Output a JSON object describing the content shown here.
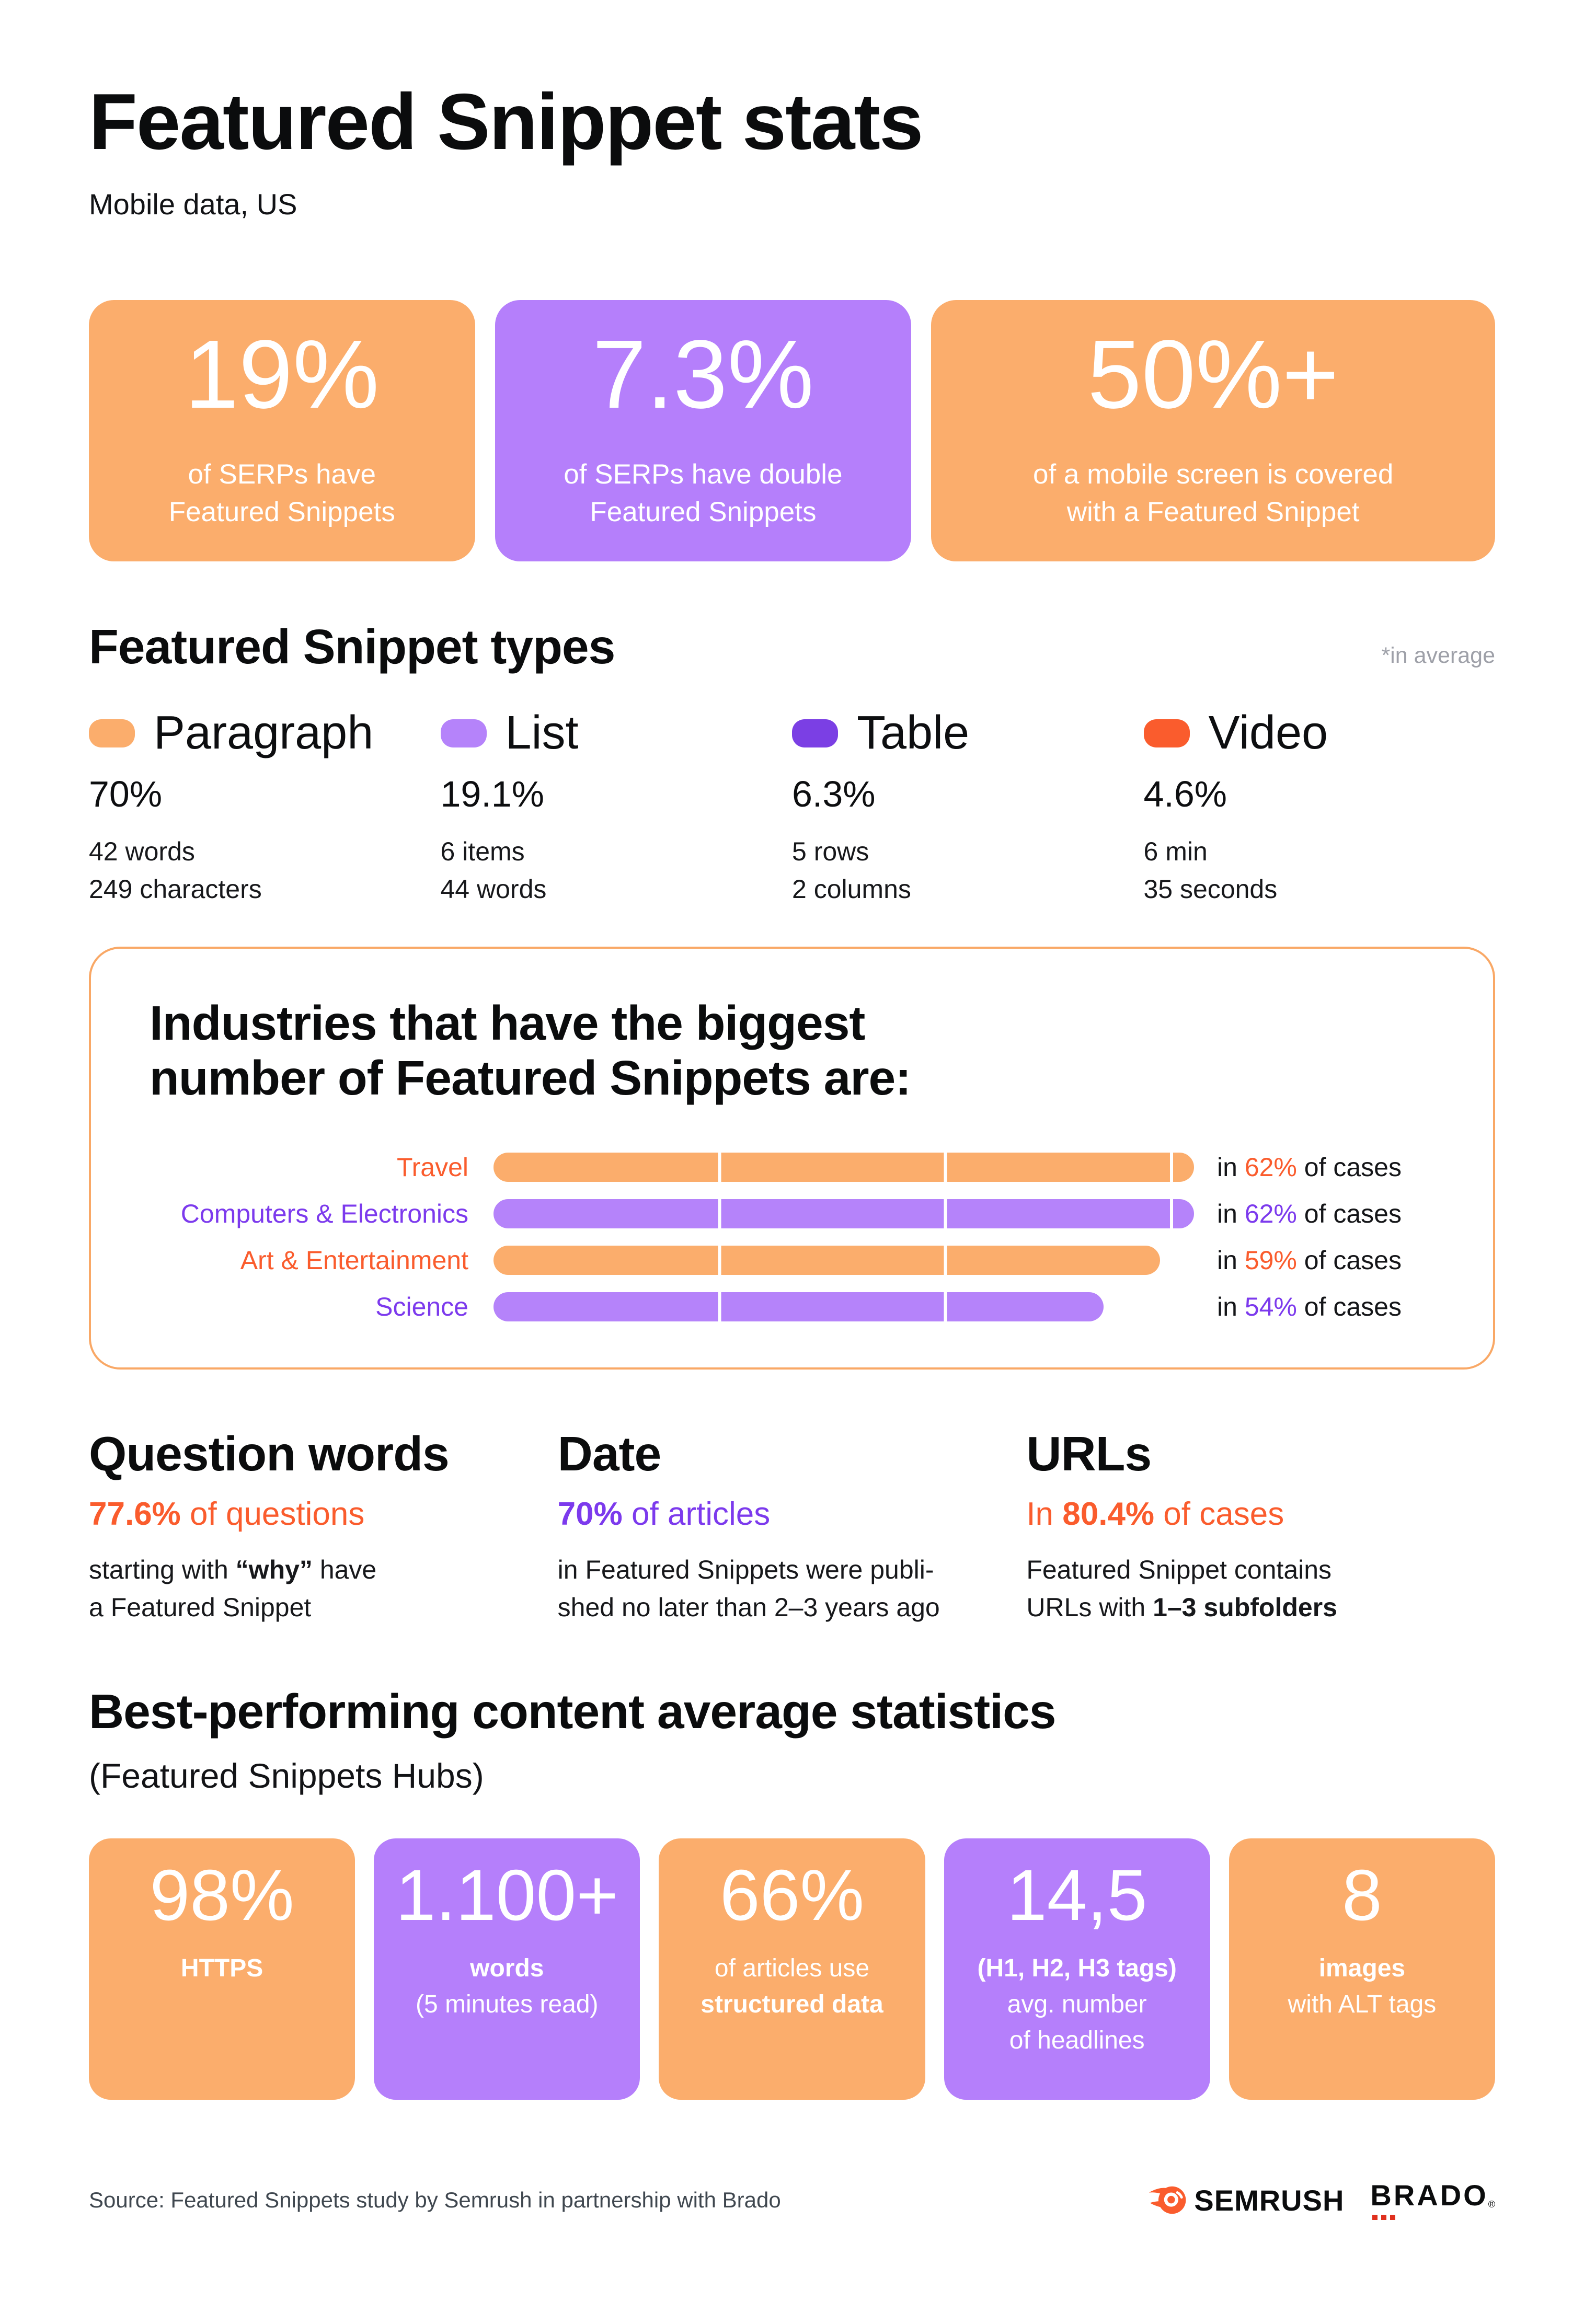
{
  "header": {
    "title": "Featured Snippet stats",
    "subtitle": "Mobile data, US"
  },
  "colors": {
    "card_orange": "#FBAD6C",
    "card_purple": "#B57FFB",
    "accent_orange": "#FA5C2D",
    "accent_purple": "#7C3AED",
    "swatch_dark_purple": "#7B3FE4",
    "box_border_orange": "#F9A866",
    "note_gray": "#9EA0A8",
    "footer_gray": "#3F474F",
    "brado_red": "#E0301E"
  },
  "top_cards": {
    "items": [
      {
        "value": "19%",
        "lines": [
          "of SERPs have",
          "Featured Snippets"
        ],
        "color": "orange"
      },
      {
        "value": "7.3%",
        "lines": [
          "of SERPs have double",
          "Featured Snippets"
        ],
        "color": "purple"
      },
      {
        "value": "50%+",
        "lines": [
          "of a mobile screen is covered",
          "with a Featured Snippet"
        ],
        "color": "orange"
      }
    ]
  },
  "types": {
    "heading": "Featured Snippet types",
    "note": "*in average",
    "items": [
      {
        "label": "Paragraph",
        "percent": "70%",
        "detail1": "42 words",
        "detail2": "249 characters",
        "swatch": "orange"
      },
      {
        "label": "List",
        "percent": "19.1%",
        "detail1": "6 items",
        "detail2": "44 words",
        "swatch": "light-purple"
      },
      {
        "label": "Table",
        "percent": "6.3%",
        "detail1": "5 rows",
        "detail2": "2 columns",
        "swatch": "dark-purple"
      },
      {
        "label": "Video",
        "percent": "4.6%",
        "detail1": "6 min",
        "detail2": "35 seconds",
        "swatch": "orange-red"
      }
    ]
  },
  "industries": {
    "heading_line1": "Industries that have the biggest",
    "heading_line2": "number of Featured Snippets are:"
  },
  "chart_data": {
    "type": "bar",
    "orientation": "horizontal",
    "title": "Industries that have the biggest number of Featured Snippets are:",
    "categories": [
      "Travel",
      "Computers & Electronics",
      "Art & Entertainment",
      "Science"
    ],
    "values": [
      62,
      62,
      59,
      54
    ],
    "unit": "% of cases",
    "value_prefix": "in ",
    "value_suffix": " of cases",
    "xlim": [
      0,
      62
    ],
    "gridlines_at": [
      20,
      40,
      60
    ],
    "grid_color": "#ffffff",
    "bar_colors": [
      "#FBAD6C",
      "#B583FA",
      "#FBAD6C",
      "#B583FA"
    ],
    "label_colors": [
      "#FA5C2D",
      "#7C3AED",
      "#FA5C2D",
      "#7C3AED"
    ],
    "legend_position": "none"
  },
  "stats": {
    "question": {
      "heading": "Question words",
      "num": "77.6%",
      "rest": " of questions",
      "l1a": "starting with ",
      "l1b": "“why”",
      "l1c": " have",
      "l2": "a Featured Snippet"
    },
    "date": {
      "heading": "Date",
      "num": "70%",
      "rest": " of articles",
      "l1": "in Featured Snippets were publi-",
      "l2": "shed no later than 2–3 years ago"
    },
    "urls": {
      "heading": "URLs",
      "pre": "In ",
      "num": "80.4%",
      "rest": " of cases",
      "l1": "Featured Snippet contains",
      "l2a": "URLs with ",
      "l2b": "1–3 subfolders"
    }
  },
  "best": {
    "heading": "Best-performing content average statistics",
    "subheading": "(Featured Snippets Hubs)"
  },
  "bottom_cards": {
    "items": [
      {
        "value": "98%",
        "l1": "HTTPS",
        "color": "orange"
      },
      {
        "value": "1.100+",
        "l1": "words",
        "l2": "(5 minutes read)",
        "color": "purple"
      },
      {
        "value": "66%",
        "l1": "of articles use",
        "l2": "structured data",
        "color": "orange"
      },
      {
        "value": "14,5",
        "l1": "(H1, H2, H3 tags)",
        "l2": "avg. number",
        "l3": "of headlines",
        "color": "purple"
      },
      {
        "value": "8",
        "l1": "images",
        "l2": "with ALT tags",
        "color": "orange"
      }
    ]
  },
  "footer": {
    "source": "Source: Featured Snippets study by Semrush in partnership with Brado",
    "semrush": "SEMRUSH",
    "brado": "BRADO",
    "brado_reg": "®"
  }
}
